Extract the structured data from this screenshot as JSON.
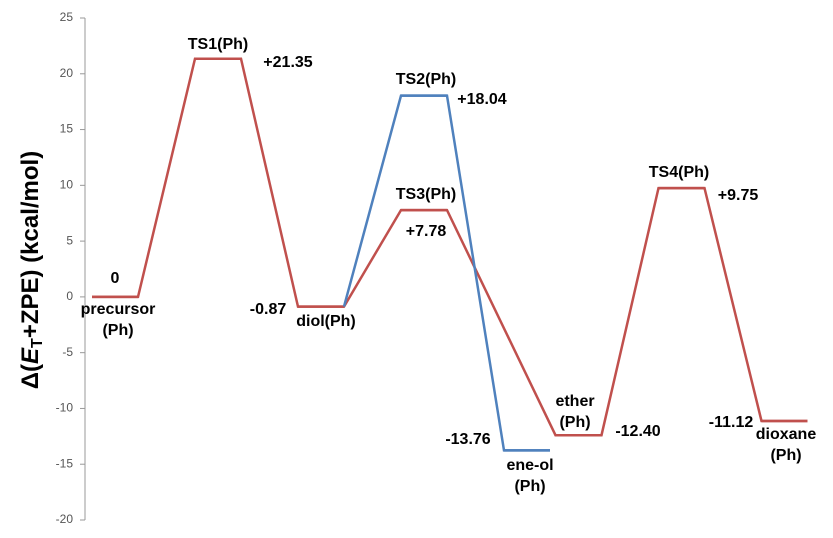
{
  "chart_data": {
    "type": "energy-profile",
    "ylabel_parts": [
      "Δ(",
      "E",
      "T",
      "+ZPE) (kcal/mol)"
    ],
    "ylim": [
      -20,
      25
    ],
    "yticks": [
      -20,
      -15,
      -10,
      -5,
      0,
      5,
      10,
      15,
      20,
      25
    ],
    "series": [
      {
        "color": "#c0504d",
        "states": [
          [
            "precursor",
            "(Ph)"
          ],
          [
            "TS1(Ph)"
          ],
          [
            "diol(Ph)"
          ],
          [
            "TS3(Ph)"
          ],
          [
            "ether",
            "(Ph)"
          ],
          [
            "TS4(Ph)"
          ],
          [
            "dioxane",
            "(Ph)"
          ]
        ],
        "values": [
          0,
          21.35,
          -0.87,
          7.78,
          -12.4,
          9.75,
          -11.12
        ],
        "value_labels": [
          "0",
          "+21.35",
          "-0.87",
          "+7.78",
          "-12.40",
          "+9.75",
          "-11.12"
        ]
      },
      {
        "color": "#4f81bd",
        "states": [
          [
            "TS2(Ph)"
          ],
          [
            "ene-ol",
            "(Ph)"
          ]
        ],
        "values": [
          18.04,
          -13.76
        ],
        "value_labels": [
          "+18.04",
          "-13.76"
        ]
      }
    ]
  }
}
